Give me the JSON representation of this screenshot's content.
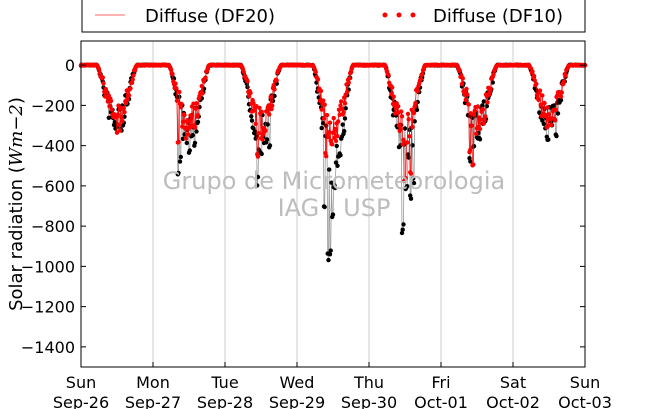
{
  "chart_data": {
    "type": "line",
    "ylabel": "Solar radiation (Wm-2)",
    "ylabel_parts": {
      "prefix": "Solar radiation (",
      "math": "Wm",
      "sup": "−2",
      "suffix": ")"
    },
    "ylim": [
      -1500,
      120
    ],
    "yticks": [
      0,
      -200,
      -400,
      -600,
      -800,
      -1000,
      -1200,
      -1400
    ],
    "yticklabels": [
      "0",
      "−200",
      "−400",
      "−600",
      "−800",
      "−1000",
      "−1200",
      "−1400"
    ],
    "xlim": [
      0,
      7
    ],
    "xticks": [
      {
        "pos": 0,
        "day": "Sun",
        "date": "Sep-26"
      },
      {
        "pos": 1,
        "day": "Mon",
        "date": "Sep-27"
      },
      {
        "pos": 2,
        "day": "Tue",
        "date": "Sep-28"
      },
      {
        "pos": 3,
        "day": "Wed",
        "date": "Sep-29"
      },
      {
        "pos": 4,
        "day": "Thu",
        "date": "Sep-30"
      },
      {
        "pos": 5,
        "day": "Fri",
        "date": "Oct-01"
      },
      {
        "pos": 6,
        "day": "Sat",
        "date": "Oct-02"
      },
      {
        "pos": 7,
        "day": "Sun",
        "date": "Oct-03"
      }
    ],
    "grid": "vertical",
    "legend": {
      "placement": "top",
      "ncol": 2
    },
    "watermark": [
      "Grupo de Micrometeorologia",
      "IAG - USP"
    ],
    "series": [
      {
        "name": "Diffuse (DF20)",
        "color": "#000000",
        "line_color": "#999999",
        "marker": "dot",
        "days": [
          {
            "day": 0,
            "min": -370,
            "spikes": [
              [
                0.56,
                -340
              ],
              [
                0.5,
                -310
              ]
            ]
          },
          {
            "day": 1,
            "min": -440,
            "spikes": [
              [
                0.35,
                -550
              ],
              [
                0.38,
                -490
              ],
              [
                0.58,
                -420
              ]
            ]
          },
          {
            "day": 2,
            "min": -440,
            "spikes": [
              [
                0.45,
                -600
              ],
              [
                0.5,
                -470
              ],
              [
                0.62,
                -420
              ]
            ]
          },
          {
            "day": 3,
            "min": -620,
            "spikes": [
              [
                0.38,
                -760
              ],
              [
                0.43,
                -1000
              ],
              [
                0.46,
                -950
              ],
              [
                0.5,
                -800
              ],
              [
                0.52,
                -620
              ]
            ]
          },
          {
            "day": 4,
            "min": -520,
            "spikes": [
              [
                0.47,
                -840
              ],
              [
                0.58,
                -670
              ],
              [
                0.52,
                -640
              ],
              [
                0.62,
                -600
              ]
            ]
          },
          {
            "day": 5,
            "min": -400,
            "spikes": [
              [
                0.4,
                -480
              ],
              [
                0.45,
                -420
              ]
            ]
          },
          {
            "day": 6,
            "min": -380,
            "spikes": [
              [
                0.48,
                -380
              ],
              [
                0.6,
                -370
              ]
            ]
          }
        ]
      },
      {
        "name": "Diffuse (DF10)",
        "color": "#ff0000",
        "line_color": "#ff0000",
        "marker": "dot",
        "days": [
          {
            "day": 0,
            "min": -340,
            "spikes": []
          },
          {
            "day": 1,
            "min": -380,
            "spikes": [
              [
                0.35,
                -400
              ]
            ]
          },
          {
            "day": 2,
            "min": -380,
            "spikes": [
              [
                0.45,
                -470
              ]
            ]
          },
          {
            "day": 3,
            "min": -420,
            "spikes": [
              [
                0.4,
                -460
              ],
              [
                0.48,
                -400
              ]
            ]
          },
          {
            "day": 4,
            "min": -420,
            "spikes": [
              [
                0.5,
                -580
              ],
              [
                0.58,
                -550
              ]
            ]
          },
          {
            "day": 5,
            "min": -360,
            "spikes": [
              [
                0.4,
                -450
              ],
              [
                0.44,
                -500
              ]
            ]
          },
          {
            "day": 6,
            "min": -330,
            "spikes": []
          }
        ]
      }
    ]
  }
}
